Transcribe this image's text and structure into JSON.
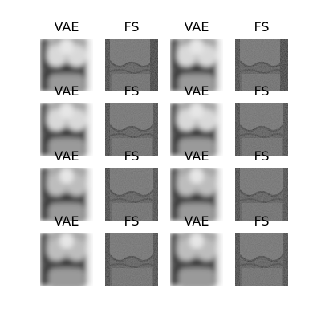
{
  "figure": {
    "panels": [
      {
        "title": "VAE",
        "kind": "vae"
      },
      {
        "title": "FS",
        "kind": "fs"
      },
      {
        "title": "VAE",
        "kind": "vae"
      },
      {
        "title": "FS",
        "kind": "fs"
      },
      {
        "title": "VAE",
        "kind": "vae"
      },
      {
        "title": "FS",
        "kind": "fs"
      },
      {
        "title": "VAE",
        "kind": "vae"
      },
      {
        "title": "FS",
        "kind": "fs"
      },
      {
        "title": "VAE",
        "kind": "vae"
      },
      {
        "title": "FS",
        "kind": "fs"
      },
      {
        "title": "VAE",
        "kind": "vae"
      },
      {
        "title": "FS",
        "kind": "fs"
      },
      {
        "title": "VAE",
        "kind": "vae"
      },
      {
        "title": "FS",
        "kind": "fs"
      },
      {
        "title": "VAE",
        "kind": "vae"
      },
      {
        "title": "FS",
        "kind": "fs"
      }
    ]
  }
}
